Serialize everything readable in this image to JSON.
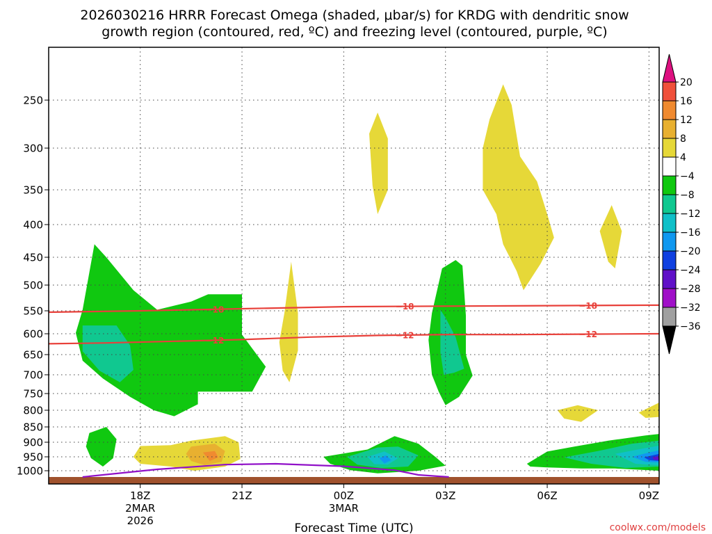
{
  "chart_data": {
    "type": "time-height-contour",
    "title_line1": "2026030216 HRRR Forecast Omega (shaded, μbar/s) for KRDG with dendritic snow",
    "title_line2": "growth region (contoured, red, ºC) and freezing level (contoured, purple, ºC)",
    "xlabel": "Forecast Time (UTC)",
    "credit": "coolwx.com/models",
    "x_range_hours": [
      15.3,
      33.3
    ],
    "x_ticks": [
      {
        "hour": 18,
        "lines": [
          "18Z",
          "2MAR",
          "2026"
        ]
      },
      {
        "hour": 21,
        "lines": [
          "21Z"
        ]
      },
      {
        "hour": 24,
        "lines": [
          "00Z",
          "3MAR"
        ]
      },
      {
        "hour": 27,
        "lines": [
          "03Z"
        ]
      },
      {
        "hour": 30,
        "lines": [
          "06Z"
        ]
      },
      {
        "hour": 33,
        "lines": [
          "09Z"
        ]
      }
    ],
    "y_ticks": [
      250,
      300,
      350,
      400,
      450,
      500,
      550,
      600,
      650,
      700,
      750,
      800,
      850,
      900,
      950,
      1000
    ],
    "y_ticks_text": [
      "250",
      "300",
      "350",
      "400",
      "450",
      "500",
      "550",
      "600",
      "650",
      "700",
      "750",
      "800",
      "850",
      "900",
      "950",
      "1000"
    ],
    "colorbar": {
      "labels": [
        "20",
        "16",
        "12",
        "8",
        "4",
        "−4",
        "−8",
        "−12",
        "−16",
        "−20",
        "−24",
        "−28",
        "−32",
        "−36"
      ],
      "colors": [
        "#dd1080",
        "#f0503a",
        "#f08a30",
        "#e8b030",
        "#e6d838",
        "#ffffff",
        "#10c810",
        "#10c890",
        "#10c0c8",
        "#1098f0",
        "#1040e0",
        "#6010c8",
        "#a010c8",
        "#a0a0a0",
        "#000000"
      ]
    },
    "contour_lines": [
      {
        "name": "dendritic-minus18",
        "label": "−18",
        "color": "#e8403a",
        "hours": [
          15.3,
          18,
          21,
          24,
          27,
          30,
          33.3
        ],
        "pressure": [
          553,
          550,
          546,
          542,
          541,
          540,
          539
        ]
      },
      {
        "name": "dendritic-minus12",
        "label": "−12",
        "color": "#e8403a",
        "hours": [
          15.3,
          17,
          19,
          21,
          23,
          25,
          27,
          29,
          31,
          33.3
        ],
        "pressure": [
          624,
          622,
          618,
          614,
          608,
          604,
          602,
          602,
          601,
          600
        ]
      },
      {
        "name": "freezing-level",
        "label": "",
        "color": "#9010c8",
        "hours": [
          16.3,
          18.5,
          20.5,
          22,
          24,
          25.5,
          26.2,
          27.1
        ],
        "pressure": [
          1012,
          995,
          978,
          975,
          984,
          998,
          1008,
          1012
        ]
      }
    ],
    "omega_regions": [
      {
        "name": "green-left-upper",
        "value_band": "-8..-4",
        "color": "#10c810",
        "points": [
          [
            16.1,
            598
          ],
          [
            16.3,
            548
          ],
          [
            16.65,
            430
          ],
          [
            17.0,
            450
          ],
          [
            17.8,
            510
          ],
          [
            18.5,
            548
          ],
          [
            19.5,
            532
          ],
          [
            20.0,
            518
          ],
          [
            21.0,
            518
          ],
          [
            21.0,
            602
          ],
          [
            21.7,
            680
          ],
          [
            21.3,
            745
          ],
          [
            19.7,
            745
          ],
          [
            19.7,
            782
          ],
          [
            19.0,
            818
          ],
          [
            18.4,
            800
          ],
          [
            17.7,
            760
          ],
          [
            16.9,
            710
          ],
          [
            16.3,
            665
          ]
        ]
      },
      {
        "name": "teal-left",
        "value_band": "-12..-8",
        "color": "#10c890",
        "points": [
          [
            16.3,
            582
          ],
          [
            17.3,
            582
          ],
          [
            17.7,
            628
          ],
          [
            17.8,
            688
          ],
          [
            17.4,
            720
          ],
          [
            16.8,
            690
          ],
          [
            16.3,
            642
          ]
        ]
      },
      {
        "name": "green-left-low",
        "value_band": "-8..-4",
        "color": "#10c810",
        "points": [
          [
            16.5,
            870
          ],
          [
            17.0,
            850
          ],
          [
            17.3,
            890
          ],
          [
            17.2,
            955
          ],
          [
            16.9,
            985
          ],
          [
            16.55,
            955
          ],
          [
            16.4,
            915
          ]
        ]
      },
      {
        "name": "yellow-low-left",
        "value_band": "4..8",
        "color": "#e6d838",
        "points": [
          [
            18.0,
            913
          ],
          [
            18.9,
            910
          ],
          [
            19.5,
            895
          ],
          [
            20.5,
            880
          ],
          [
            20.9,
            900
          ],
          [
            20.95,
            958
          ],
          [
            20.5,
            985
          ],
          [
            19.6,
            1000
          ],
          [
            18.9,
            985
          ],
          [
            18.0,
            975
          ],
          [
            17.8,
            950
          ]
        ]
      },
      {
        "name": "orange-low-left",
        "value_band": "8..12",
        "color": "#e8b030",
        "points": [
          [
            19.5,
            915
          ],
          [
            20.2,
            905
          ],
          [
            20.5,
            930
          ],
          [
            20.4,
            968
          ],
          [
            19.9,
            980
          ],
          [
            19.5,
            965
          ],
          [
            19.35,
            940
          ]
        ]
      },
      {
        "name": "dark-orange-low-left",
        "value_band": "12..16",
        "color": "#f08a30",
        "points": [
          [
            19.85,
            935
          ],
          [
            20.2,
            930
          ],
          [
            20.3,
            952
          ],
          [
            20.05,
            965
          ]
        ]
      },
      {
        "name": "yellow-narrow-2130",
        "value_band": "4..8",
        "color": "#e6d838",
        "points": [
          [
            22.1,
            620
          ],
          [
            22.25,
            555
          ],
          [
            22.45,
            458
          ],
          [
            22.65,
            555
          ],
          [
            22.65,
            640
          ],
          [
            22.4,
            720
          ],
          [
            22.2,
            690
          ]
        ]
      },
      {
        "name": "yellow-upper-00z",
        "value_band": "4..8",
        "color": "#e6d838",
        "points": [
          [
            24.75,
            285
          ],
          [
            25.0,
            263
          ],
          [
            25.3,
            290
          ],
          [
            25.3,
            350
          ],
          [
            25.0,
            385
          ],
          [
            24.85,
            345
          ]
        ]
      },
      {
        "name": "green-low-00z",
        "value_band": "-8..-4",
        "color": "#10c810",
        "points": [
          [
            23.4,
            950
          ],
          [
            24.7,
            925
          ],
          [
            25.5,
            880
          ],
          [
            26.2,
            905
          ],
          [
            26.7,
            950
          ],
          [
            27.0,
            982
          ],
          [
            26.2,
            1000
          ],
          [
            25.0,
            1005
          ],
          [
            24.2,
            998
          ],
          [
            23.6,
            975
          ]
        ]
      },
      {
        "name": "teal-low-00z",
        "value_band": "-12..-8",
        "color": "#10c890",
        "points": [
          [
            24.1,
            950
          ],
          [
            25.0,
            918
          ],
          [
            25.6,
            915
          ],
          [
            26.2,
            945
          ],
          [
            25.9,
            985
          ],
          [
            25.1,
            990
          ],
          [
            24.4,
            978
          ]
        ]
      },
      {
        "name": "cyan-low-00z",
        "value_band": "-16..-12",
        "color": "#10c0c8",
        "points": [
          [
            24.7,
            950
          ],
          [
            25.2,
            932
          ],
          [
            25.6,
            955
          ],
          [
            25.3,
            978
          ],
          [
            24.9,
            976
          ]
        ]
      },
      {
        "name": "blue-low-00z",
        "value_band": "-20..-16",
        "color": "#1098f0",
        "points": [
          [
            25.05,
            955
          ],
          [
            25.25,
            945
          ],
          [
            25.4,
            962
          ],
          [
            25.2,
            974
          ]
        ]
      },
      {
        "name": "green-mid-02z",
        "value_band": "-8..-4",
        "color": "#10c810",
        "points": [
          [
            26.6,
            555
          ],
          [
            26.9,
            470
          ],
          [
            27.3,
            455
          ],
          [
            27.5,
            465
          ],
          [
            27.6,
            560
          ],
          [
            27.6,
            650
          ],
          [
            27.8,
            702
          ],
          [
            27.4,
            760
          ],
          [
            27.0,
            785
          ],
          [
            26.8,
            745
          ],
          [
            26.6,
            700
          ],
          [
            26.5,
            615
          ]
        ]
      },
      {
        "name": "teal-mid-02z",
        "value_band": "-12..-8",
        "color": "#10c890",
        "points": [
          [
            26.85,
            548
          ],
          [
            27.0,
            565
          ],
          [
            27.3,
            608
          ],
          [
            27.55,
            685
          ],
          [
            27.25,
            695
          ],
          [
            26.95,
            700
          ],
          [
            26.85,
            645
          ]
        ]
      },
      {
        "name": "yellow-upper-04z",
        "value_band": "4..8",
        "color": "#e6d838",
        "points": [
          [
            28.3,
            270
          ],
          [
            28.7,
            235
          ],
          [
            28.95,
            255
          ],
          [
            29.2,
            310
          ],
          [
            29.7,
            340
          ],
          [
            30.0,
            385
          ],
          [
            30.2,
            420
          ],
          [
            29.8,
            462
          ],
          [
            29.3,
            510
          ],
          [
            29.1,
            475
          ],
          [
            28.7,
            430
          ],
          [
            28.5,
            385
          ],
          [
            28.1,
            350
          ],
          [
            28.1,
            300
          ]
        ]
      },
      {
        "name": "yellow-small-07z",
        "value_band": "4..8",
        "color": "#e6d838",
        "points": [
          [
            30.3,
            800
          ],
          [
            30.9,
            785
          ],
          [
            31.5,
            800
          ],
          [
            31.0,
            835
          ],
          [
            30.5,
            825
          ]
        ]
      },
      {
        "name": "yellow-upper-08z",
        "value_band": "4..8",
        "color": "#e6d838",
        "points": [
          [
            31.55,
            410
          ],
          [
            31.9,
            372
          ],
          [
            32.2,
            410
          ],
          [
            32.0,
            470
          ],
          [
            31.8,
            458
          ]
        ]
      },
      {
        "name": "yellow-corner-10z",
        "value_band": "4..8",
        "color": "#e6d838",
        "points": [
          [
            32.7,
            807
          ],
          [
            33.3,
            777
          ],
          [
            33.3,
            820
          ],
          [
            32.9,
            823
          ]
        ]
      },
      {
        "name": "green-low-06z",
        "value_band": "-8..-4",
        "color": "#10c810",
        "points": [
          [
            29.4,
            975
          ],
          [
            30.0,
            932
          ],
          [
            30.8,
            915
          ],
          [
            31.8,
            895
          ],
          [
            32.9,
            878
          ],
          [
            33.3,
            873
          ],
          [
            33.3,
            1000
          ],
          [
            32.0,
            992
          ],
          [
            31.0,
            992
          ],
          [
            30.0,
            988
          ],
          [
            29.5,
            985
          ]
        ]
      },
      {
        "name": "teal-low-06z",
        "value_band": "-12..-8",
        "color": "#10c890",
        "points": [
          [
            30.5,
            952
          ],
          [
            31.5,
            930
          ],
          [
            32.5,
            905
          ],
          [
            33.3,
            895
          ],
          [
            33.3,
            985
          ],
          [
            32.3,
            990
          ],
          [
            31.3,
            975
          ]
        ]
      },
      {
        "name": "cyan-low-06z",
        "value_band": "-16..-12",
        "color": "#10c0c8",
        "points": [
          [
            32.0,
            940
          ],
          [
            32.8,
            922
          ],
          [
            33.3,
            912
          ],
          [
            33.3,
            980
          ],
          [
            32.6,
            975
          ]
        ]
      },
      {
        "name": "blue-low-06z",
        "value_band": "-20..-16",
        "color": "#1098f0",
        "points": [
          [
            32.5,
            950
          ],
          [
            33.0,
            935
          ],
          [
            33.3,
            928
          ],
          [
            33.3,
            970
          ],
          [
            32.9,
            968
          ]
        ]
      },
      {
        "name": "dark-blue-low-06z",
        "value_band": "-24..-20",
        "color": "#1040e0",
        "points": [
          [
            32.85,
            952
          ],
          [
            33.3,
            940
          ],
          [
            33.3,
            965
          ],
          [
            33.0,
            962
          ]
        ]
      },
      {
        "name": "purple-low-06z",
        "value_band": "-28..-24",
        "color": "#6010c8",
        "points": [
          [
            33.1,
            952
          ],
          [
            33.3,
            947
          ],
          [
            33.3,
            962
          ],
          [
            33.15,
            961
          ]
        ]
      }
    ],
    "terrain": {
      "name": "ground",
      "color": "#a0522d",
      "surface_pressure": 1012
    }
  }
}
